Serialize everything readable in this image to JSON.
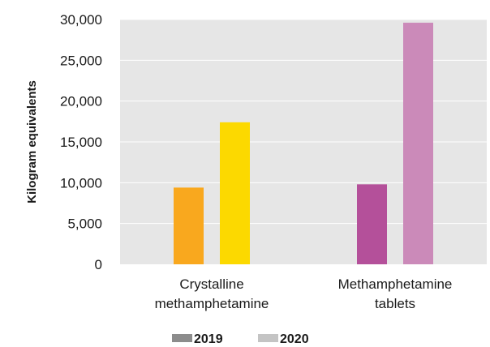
{
  "chart_data": {
    "type": "bar",
    "title": "",
    "xlabel": "",
    "ylabel": "Kilogram equivalents",
    "ylim": [
      0,
      30000
    ],
    "yticks": [
      0,
      5000,
      10000,
      15000,
      20000,
      25000,
      30000
    ],
    "ytick_labels": [
      "0",
      "5,000",
      "10,000",
      "15,000",
      "20,000",
      "25,000",
      "30,000"
    ],
    "grid": true,
    "legend_position": "bottom",
    "categories": [
      {
        "line1": "Crystalline",
        "line2": "methamphetamine"
      },
      {
        "line1": "Methamphetamine",
        "line2": "tablets"
      }
    ],
    "series": [
      {
        "name": "2019",
        "values": [
          9400,
          9800
        ],
        "legend_color": "#8c8c8c",
        "bar_colors": [
          "#f9a81e",
          "#b4509a"
        ]
      },
      {
        "name": "2020",
        "values": [
          17400,
          29600
        ],
        "legend_color": "#c4c4c4",
        "bar_colors": [
          "#fcd900",
          "#cb8ab9"
        ]
      }
    ],
    "plot_background": "#e6e6e6",
    "gridline_color": "#ffffff"
  }
}
